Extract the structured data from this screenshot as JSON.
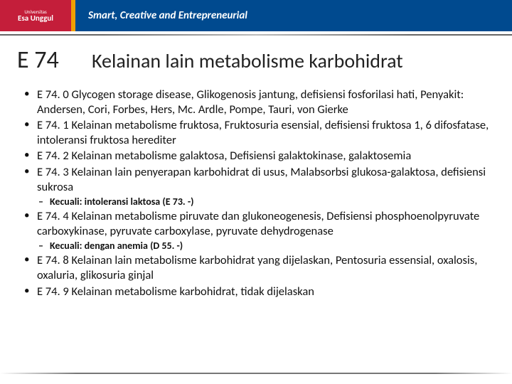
{
  "header": {
    "logo_university": "Universitas",
    "logo_name": "Esa Unggul",
    "tagline": "Smart, Creative and Entrepreneurial"
  },
  "slide": {
    "code": "E 74",
    "title": "Kelainan lain metabolisme karbohidrat",
    "bullets": [
      {
        "text": "E 74. 0  Glycogen storage disease, Glikogenosis jantung, defisiensi fosforilasi hati, Penyakit: Andersen, Cori, Forbes, Hers, Mc. Ardle, Pompe, Tauri, von Gierke"
      },
      {
        "text": "E 74. 1  Kelainan metabolisme fruktosa,  Fruktosuria esensial, defisiensi fruktosa 1, 6 difosfatase, intoleransi fruktosa herediter"
      },
      {
        "text": "E 74. 2  Kelainan metabolisme galaktosa, Defisiensi galaktokinase, galaktosemia"
      },
      {
        "text": " E 74. 3  Kelainan lain penyerapan karbohidrat di usus, Malabsorbsi glukosa-galaktosa, defisiensi sukrosa",
        "sub": [
          "Kecuali: intoleransi laktosa (E 73. -)"
        ]
      },
      {
        "text": "E 74. 4  Kelainan metabolisme piruvate dan glukoneogenesis,  Defisiensi phosphoenolpyruvate carboxykinase,  pyruvate carboxylase, pyruvate dehydrogenase",
        "sub": [
          "Kecuali: dengan anemia (D 55. -)"
        ]
      },
      {
        "text": "E 74. 8  Kelainan lain metabolisme karbohidrat yang dijelaskan, Pentosuria essensial, oxalosis, oxaluria, glikosuria ginjal"
      },
      {
        "text": "E 74. 9  Kelainan metabolisme karbohidrat, tidak dijelaskan"
      }
    ]
  }
}
